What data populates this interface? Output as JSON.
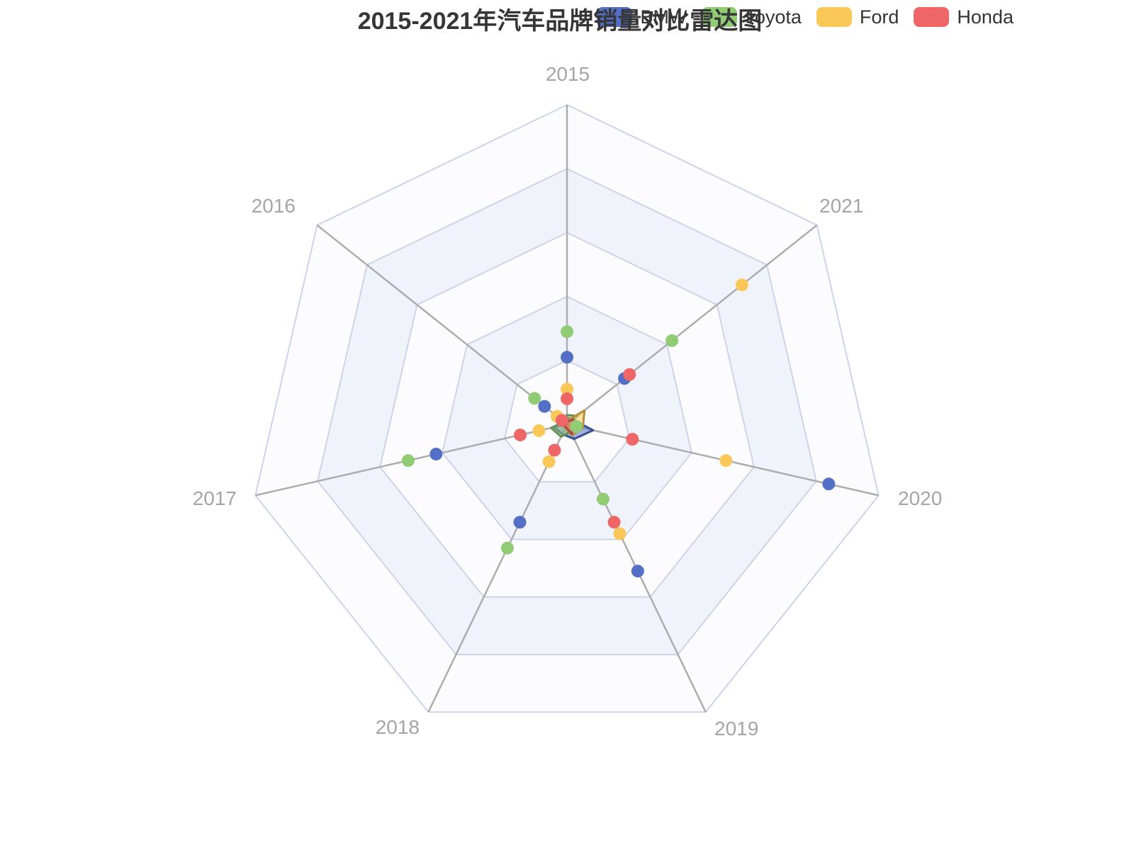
{
  "title": "2015-2021年汽车品牌销量对比雷达图",
  "legend": {
    "position": "top-right",
    "items": [
      {
        "label": "BMW",
        "color": "#5470C6"
      },
      {
        "label": "Toyota",
        "color": "#91CC75"
      },
      {
        "label": "Ford",
        "color": "#FAC858"
      },
      {
        "label": "Honda",
        "color": "#EE6666"
      }
    ]
  },
  "chart_data": {
    "type": "radar",
    "title": "2015-2021年汽车品牌销量对比雷达图",
    "categories": [
      "2015",
      "2016",
      "2017",
      "2018",
      "2019",
      "2020",
      "2021"
    ],
    "rings": 5,
    "axis_range": [
      0,
      100
    ],
    "value_unit": "percent of axis max (estimated from dot positions; no tick labels shown)",
    "series": [
      {
        "name": "BMW",
        "color": "#5470C6",
        "values": [
          21,
          9,
          42,
          34,
          51,
          84,
          23
        ]
      },
      {
        "name": "Toyota",
        "color": "#91CC75",
        "values": [
          29,
          13,
          51,
          43,
          26,
          3,
          42
        ]
      },
      {
        "name": "Ford",
        "color": "#FAC858",
        "values": [
          11,
          4,
          9,
          13,
          38,
          51,
          70
        ]
      },
      {
        "name": "Honda",
        "color": "#EE6666",
        "values": [
          8,
          2,
          15,
          9,
          34,
          21,
          25
        ]
      }
    ],
    "legend_position": "top-right",
    "marker_style": "dots_on_axes",
    "center_polygon_scale": 0.1,
    "grid": {
      "split_area_colors": [
        "#fcfcfe",
        "#f1f3fa"
      ],
      "split_line_color": "#cdd4ea",
      "axis_line_color": "#adadad",
      "axis_label_color": "#a5a5a5"
    }
  }
}
